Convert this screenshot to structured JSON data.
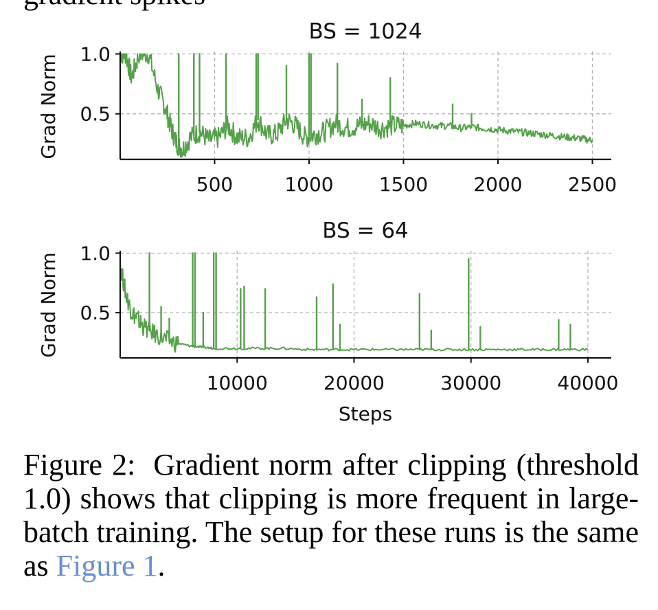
{
  "colors": {
    "series": "#55a04a",
    "link": "#6b8fce"
  },
  "top_crop_text": "gradient spikes",
  "chart_data": [
    {
      "type": "line",
      "title": "BS = 1024",
      "xlabel": "",
      "ylabel": "Grad Norm",
      "xlim": [
        0,
        2600
      ],
      "ylim": [
        0.12,
        1.02
      ],
      "xticks": [
        500,
        1000,
        1500,
        2000,
        2500
      ],
      "yticks": [
        0.5,
        1.0
      ],
      "ytick_labels": [
        "0.5",
        "1.0"
      ],
      "grid": true,
      "series": [
        {
          "name": "grad norm",
          "x": [
            0,
            30,
            60,
            100,
            150,
            200,
            240,
            270,
            300,
            330,
            370,
            420,
            470,
            520,
            570,
            620,
            680,
            730,
            780,
            830,
            880,
            930,
            980,
            1030,
            1080,
            1140,
            1200,
            1260,
            1320,
            1380,
            1440,
            1500,
            1560,
            1620,
            1680,
            1740,
            1800,
            1860,
            1920,
            1980,
            2040,
            2100,
            2160,
            2220,
            2280,
            2340,
            2400,
            2450,
            2500
          ],
          "values": [
            1.0,
            1.0,
            0.8,
            1.0,
            1.0,
            0.7,
            0.55,
            0.38,
            0.25,
            0.2,
            0.3,
            0.35,
            0.28,
            0.3,
            0.4,
            0.3,
            0.3,
            0.45,
            0.32,
            0.33,
            0.45,
            0.4,
            0.3,
            0.33,
            0.35,
            0.42,
            0.38,
            0.4,
            0.42,
            0.38,
            0.4,
            0.4,
            0.42,
            0.41,
            0.4,
            0.4,
            0.38,
            0.39,
            0.38,
            0.37,
            0.36,
            0.35,
            0.34,
            0.33,
            0.32,
            0.31,
            0.3,
            0.29,
            0.28
          ]
        }
      ],
      "spikes": [
        {
          "x": 310,
          "y": 1.0
        },
        {
          "x": 390,
          "y": 1.0
        },
        {
          "x": 420,
          "y": 1.0
        },
        {
          "x": 560,
          "y": 1.0
        },
        {
          "x": 720,
          "y": 1.0
        },
        {
          "x": 730,
          "y": 1.0
        },
        {
          "x": 880,
          "y": 0.9
        },
        {
          "x": 1000,
          "y": 1.0
        },
        {
          "x": 1010,
          "y": 1.0
        },
        {
          "x": 1150,
          "y": 0.92
        },
        {
          "x": 1280,
          "y": 0.62
        },
        {
          "x": 1430,
          "y": 0.8
        },
        {
          "x": 1760,
          "y": 0.58
        },
        {
          "x": 1860,
          "y": 0.5
        }
      ]
    },
    {
      "type": "line",
      "title": "BS = 64",
      "xlabel": "Steps",
      "ylabel": "Grad Norm",
      "xlim": [
        0,
        42000
      ],
      "ylim": [
        0.12,
        1.02
      ],
      "xticks": [
        10000,
        20000,
        30000,
        40000
      ],
      "yticks": [
        0.5,
        1.0
      ],
      "ytick_labels": [
        "0.5",
        "1.0"
      ],
      "grid": true,
      "series": [
        {
          "name": "grad norm",
          "x": [
            0,
            500,
            1000,
            1500,
            2000,
            3000,
            4000,
            5000,
            6000,
            7000,
            8000,
            10000,
            12000,
            14000,
            16000,
            18000,
            20000,
            22000,
            24000,
            26000,
            28000,
            30000,
            32000,
            34000,
            36000,
            38000,
            40000
          ],
          "values": [
            0.9,
            0.65,
            0.5,
            0.45,
            0.38,
            0.32,
            0.27,
            0.24,
            0.22,
            0.21,
            0.2,
            0.2,
            0.2,
            0.2,
            0.19,
            0.19,
            0.19,
            0.19,
            0.19,
            0.19,
            0.19,
            0.19,
            0.19,
            0.19,
            0.19,
            0.19,
            0.19
          ]
        }
      ],
      "spikes": [
        {
          "x": 2500,
          "y": 1.0
        },
        {
          "x": 3500,
          "y": 0.55
        },
        {
          "x": 4200,
          "y": 0.45
        },
        {
          "x": 6200,
          "y": 1.0
        },
        {
          "x": 6400,
          "y": 1.0
        },
        {
          "x": 7100,
          "y": 0.5
        },
        {
          "x": 8000,
          "y": 1.0
        },
        {
          "x": 8200,
          "y": 1.0
        },
        {
          "x": 10300,
          "y": 0.7
        },
        {
          "x": 10600,
          "y": 0.72
        },
        {
          "x": 12400,
          "y": 0.7
        },
        {
          "x": 16800,
          "y": 0.63
        },
        {
          "x": 18200,
          "y": 0.74
        },
        {
          "x": 18800,
          "y": 0.4
        },
        {
          "x": 25600,
          "y": 0.66
        },
        {
          "x": 26600,
          "y": 0.35
        },
        {
          "x": 29800,
          "y": 0.95
        },
        {
          "x": 30800,
          "y": 0.38
        },
        {
          "x": 37500,
          "y": 0.44
        },
        {
          "x": 38500,
          "y": 0.4
        }
      ]
    }
  ],
  "caption": {
    "label": "Figure 2:",
    "text_before_link": "Gradient norm after clipping (threshold 1.0) shows that clipping is more frequent in large-batch training. The setup for these runs is the same as ",
    "link_text": "Figure 1",
    "text_after_link": "."
  }
}
